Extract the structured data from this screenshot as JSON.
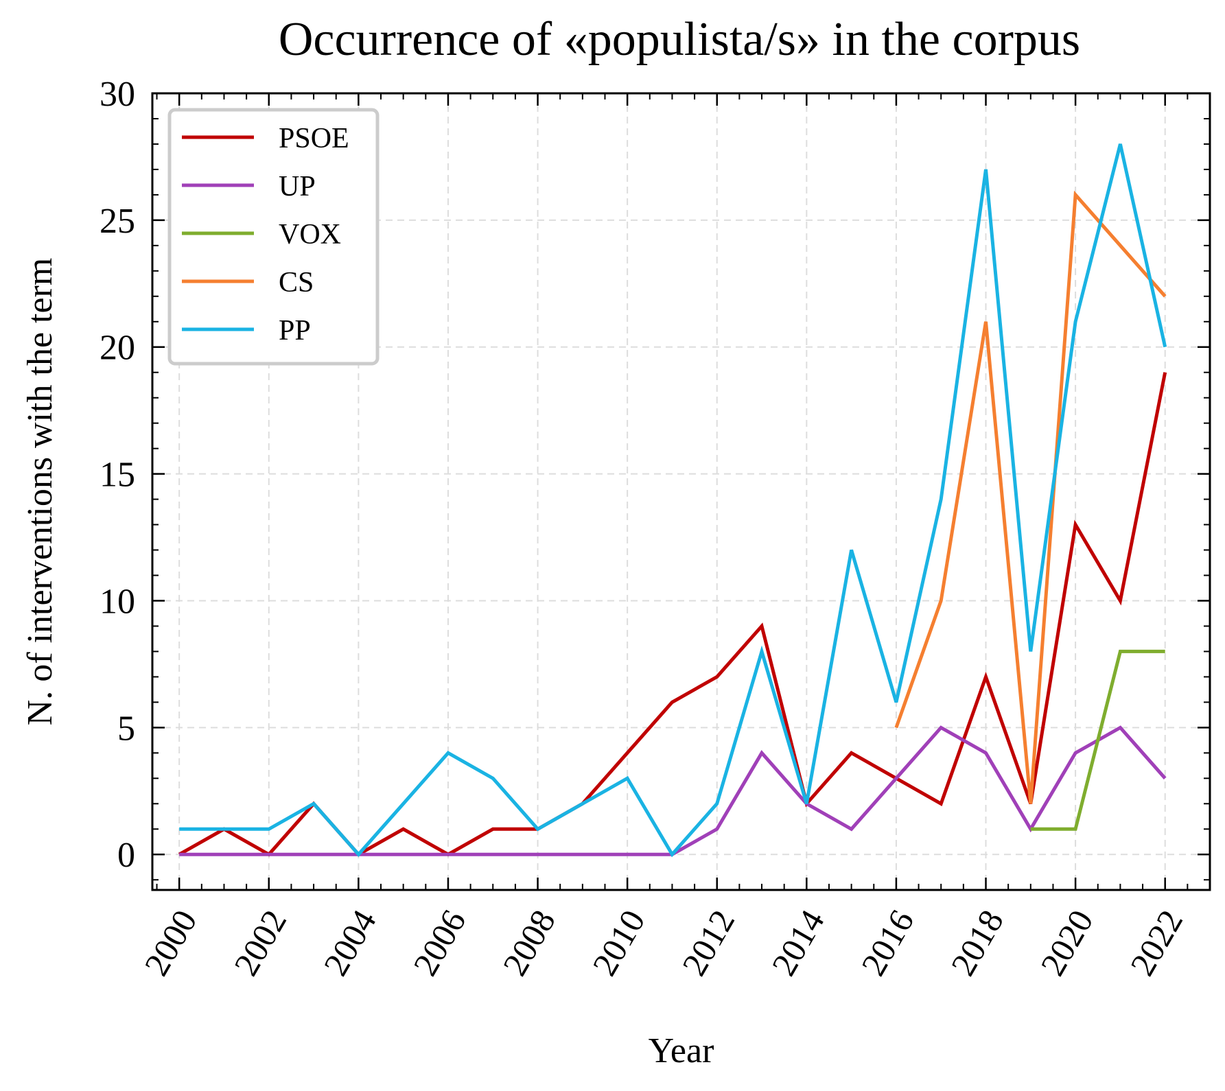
{
  "chart_data": {
    "type": "line",
    "title": "Occurrence of «populista/s» in the corpus",
    "xlabel": "Year",
    "ylabel": "N. of interventions with the term",
    "xlim": [
      1999.4,
      2023.0
    ],
    "ylim": [
      -1.4,
      30
    ],
    "x_ticks": [
      2000,
      2002,
      2004,
      2006,
      2008,
      2010,
      2012,
      2014,
      2016,
      2018,
      2020,
      2022
    ],
    "y_ticks": [
      0,
      5,
      10,
      15,
      20,
      25,
      30
    ],
    "grid": true,
    "legend_position": "top-left",
    "series": [
      {
        "name": "PSOE",
        "color": "#c00000",
        "x": [
          2000,
          2001,
          2002,
          2003,
          2004,
          2005,
          2006,
          2007,
          2008,
          2009,
          2010,
          2011,
          2012,
          2013,
          2014,
          2015,
          2016,
          2017,
          2018,
          2019,
          2020,
          2021,
          2022
        ],
        "y": [
          0,
          1,
          0,
          2,
          0,
          1,
          0,
          1,
          1,
          2,
          4,
          6,
          7,
          9,
          2,
          4,
          3,
          2,
          7,
          2,
          13,
          10,
          19
        ]
      },
      {
        "name": "UP",
        "color": "#a040b8",
        "x": [
          2000,
          2001,
          2002,
          2003,
          2004,
          2005,
          2006,
          2007,
          2008,
          2009,
          2010,
          2011,
          2012,
          2013,
          2014,
          2015,
          2016,
          2017,
          2018,
          2019,
          2020,
          2021,
          2022
        ],
        "y": [
          0,
          0,
          0,
          0,
          0,
          0,
          0,
          0,
          0,
          0,
          0,
          0,
          1,
          4,
          2,
          1,
          3,
          5,
          4,
          1,
          4,
          5,
          3
        ]
      },
      {
        "name": "VOX",
        "color": "#7fad2e",
        "x": [
          2019,
          2020,
          2021,
          2022
        ],
        "y": [
          1,
          1,
          8,
          8
        ]
      },
      {
        "name": "CS",
        "color": "#f57f30",
        "x": [
          2016,
          2017,
          2018,
          2019,
          2020,
          2021,
          2022
        ],
        "y": [
          5,
          10,
          21,
          2,
          26,
          24,
          22
        ]
      },
      {
        "name": "PP",
        "color": "#1ab3e3",
        "x": [
          2000,
          2001,
          2002,
          2003,
          2004,
          2005,
          2006,
          2007,
          2008,
          2009,
          2010,
          2011,
          2012,
          2013,
          2014,
          2015,
          2016,
          2017,
          2018,
          2019,
          2020,
          2021,
          2022
        ],
        "y": [
          1,
          1,
          1,
          2,
          0,
          2,
          4,
          3,
          1,
          2,
          3,
          0,
          2,
          8,
          2,
          12,
          6,
          14,
          27,
          8,
          21,
          28,
          20
        ]
      }
    ]
  }
}
